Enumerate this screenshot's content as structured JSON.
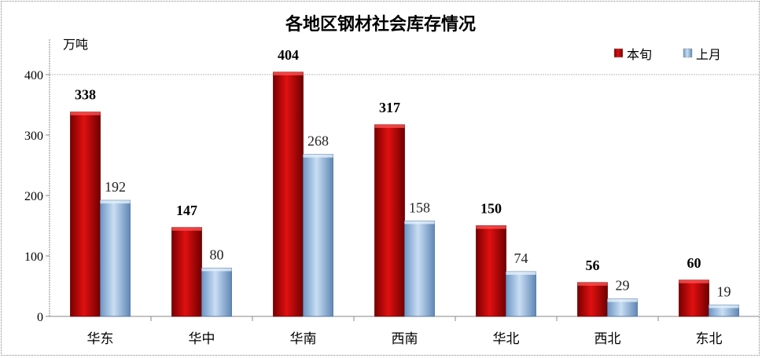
{
  "chart_data": {
    "type": "bar",
    "title": "各地区钢材社会库存情况",
    "ylabel": "万吨",
    "xlabel": "",
    "ylim": [
      0,
      400
    ],
    "yticks": [
      0,
      100,
      200,
      300,
      400
    ],
    "categories": [
      "华东",
      "华中",
      "华南",
      "西南",
      "华北",
      "西北",
      "东北"
    ],
    "series": [
      {
        "name": "本旬",
        "values": [
          338,
          147,
          404,
          317,
          150,
          56,
          60
        ],
        "color": "#C00000"
      },
      {
        "name": "上月",
        "values": [
          192,
          80,
          268,
          158,
          74,
          29,
          19
        ],
        "color": "#9DC3E6"
      }
    ],
    "legend": "top-right",
    "grid": false
  }
}
